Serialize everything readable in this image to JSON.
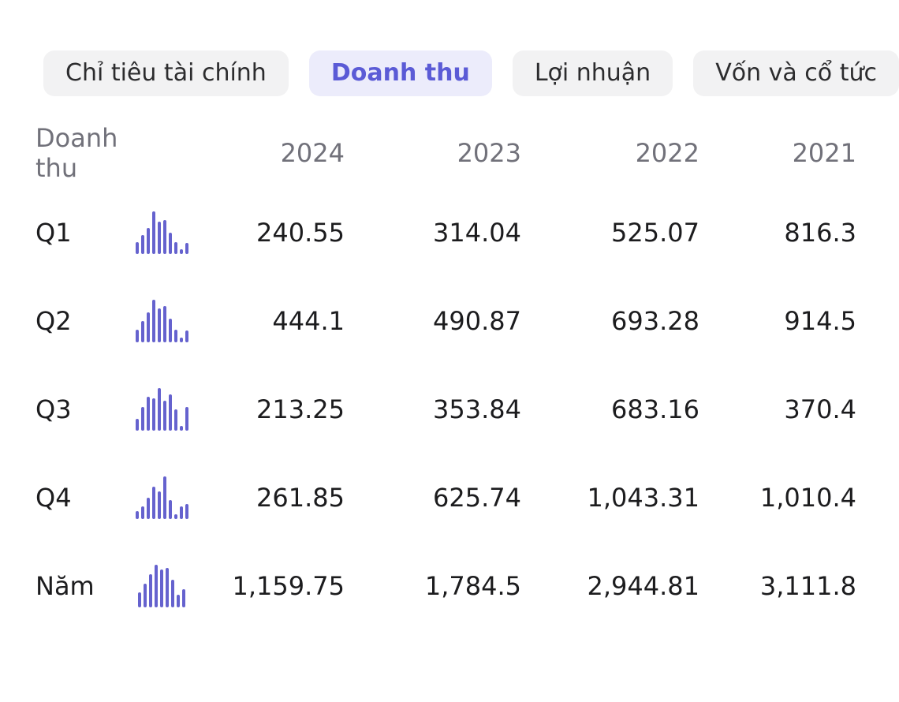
{
  "tabs": [
    {
      "label": "Chỉ tiêu tài chính",
      "active": false
    },
    {
      "label": "Doanh thu",
      "active": true
    },
    {
      "label": "Lợi nhuận",
      "active": false
    },
    {
      "label": "Vốn và cổ tức",
      "active": false
    }
  ],
  "table": {
    "title": "Doanh thu",
    "years": [
      "2024",
      "2023",
      "2022",
      "2021"
    ],
    "rows": [
      {
        "label": "Q1",
        "values": [
          "240.55",
          "314.04",
          "525.07",
          "816.3"
        ],
        "spark": [
          0.28,
          0.45,
          0.62,
          1.0,
          0.75,
          0.8,
          0.5,
          0.28,
          0.12,
          0.26
        ]
      },
      {
        "label": "Q2",
        "values": [
          "444.1",
          "490.87",
          "693.28",
          "914.5"
        ],
        "spark": [
          0.3,
          0.5,
          0.7,
          1.0,
          0.8,
          0.85,
          0.55,
          0.3,
          0.12,
          0.28
        ]
      },
      {
        "label": "Q3",
        "values": [
          "213.25",
          "353.84",
          "683.16",
          "370.4"
        ],
        "spark": [
          0.28,
          0.55,
          0.8,
          0.75,
          1.0,
          0.7,
          0.85,
          0.5,
          0.12,
          0.55
        ]
      },
      {
        "label": "Q4",
        "values": [
          "261.85",
          "625.74",
          "1,043.31",
          "1,010.4"
        ],
        "spark": [
          0.18,
          0.3,
          0.5,
          0.75,
          0.65,
          1.0,
          0.45,
          0.12,
          0.3,
          0.35
        ]
      },
      {
        "label": "Năm",
        "values": [
          "1,159.75",
          "1,784.5",
          "2,944.81",
          "3,111.8"
        ],
        "spark": [
          0.35,
          0.55,
          0.78,
          1.0,
          0.88,
          0.92,
          0.65,
          0.3,
          0.42
        ]
      }
    ]
  },
  "colors": {
    "accent": "#5B5BD6",
    "tab_active_bg": "#ECECFB",
    "tab_bg": "#F2F2F3",
    "text": "#1C1C1E",
    "muted": "#71717A",
    "spark": "#6562CE"
  }
}
